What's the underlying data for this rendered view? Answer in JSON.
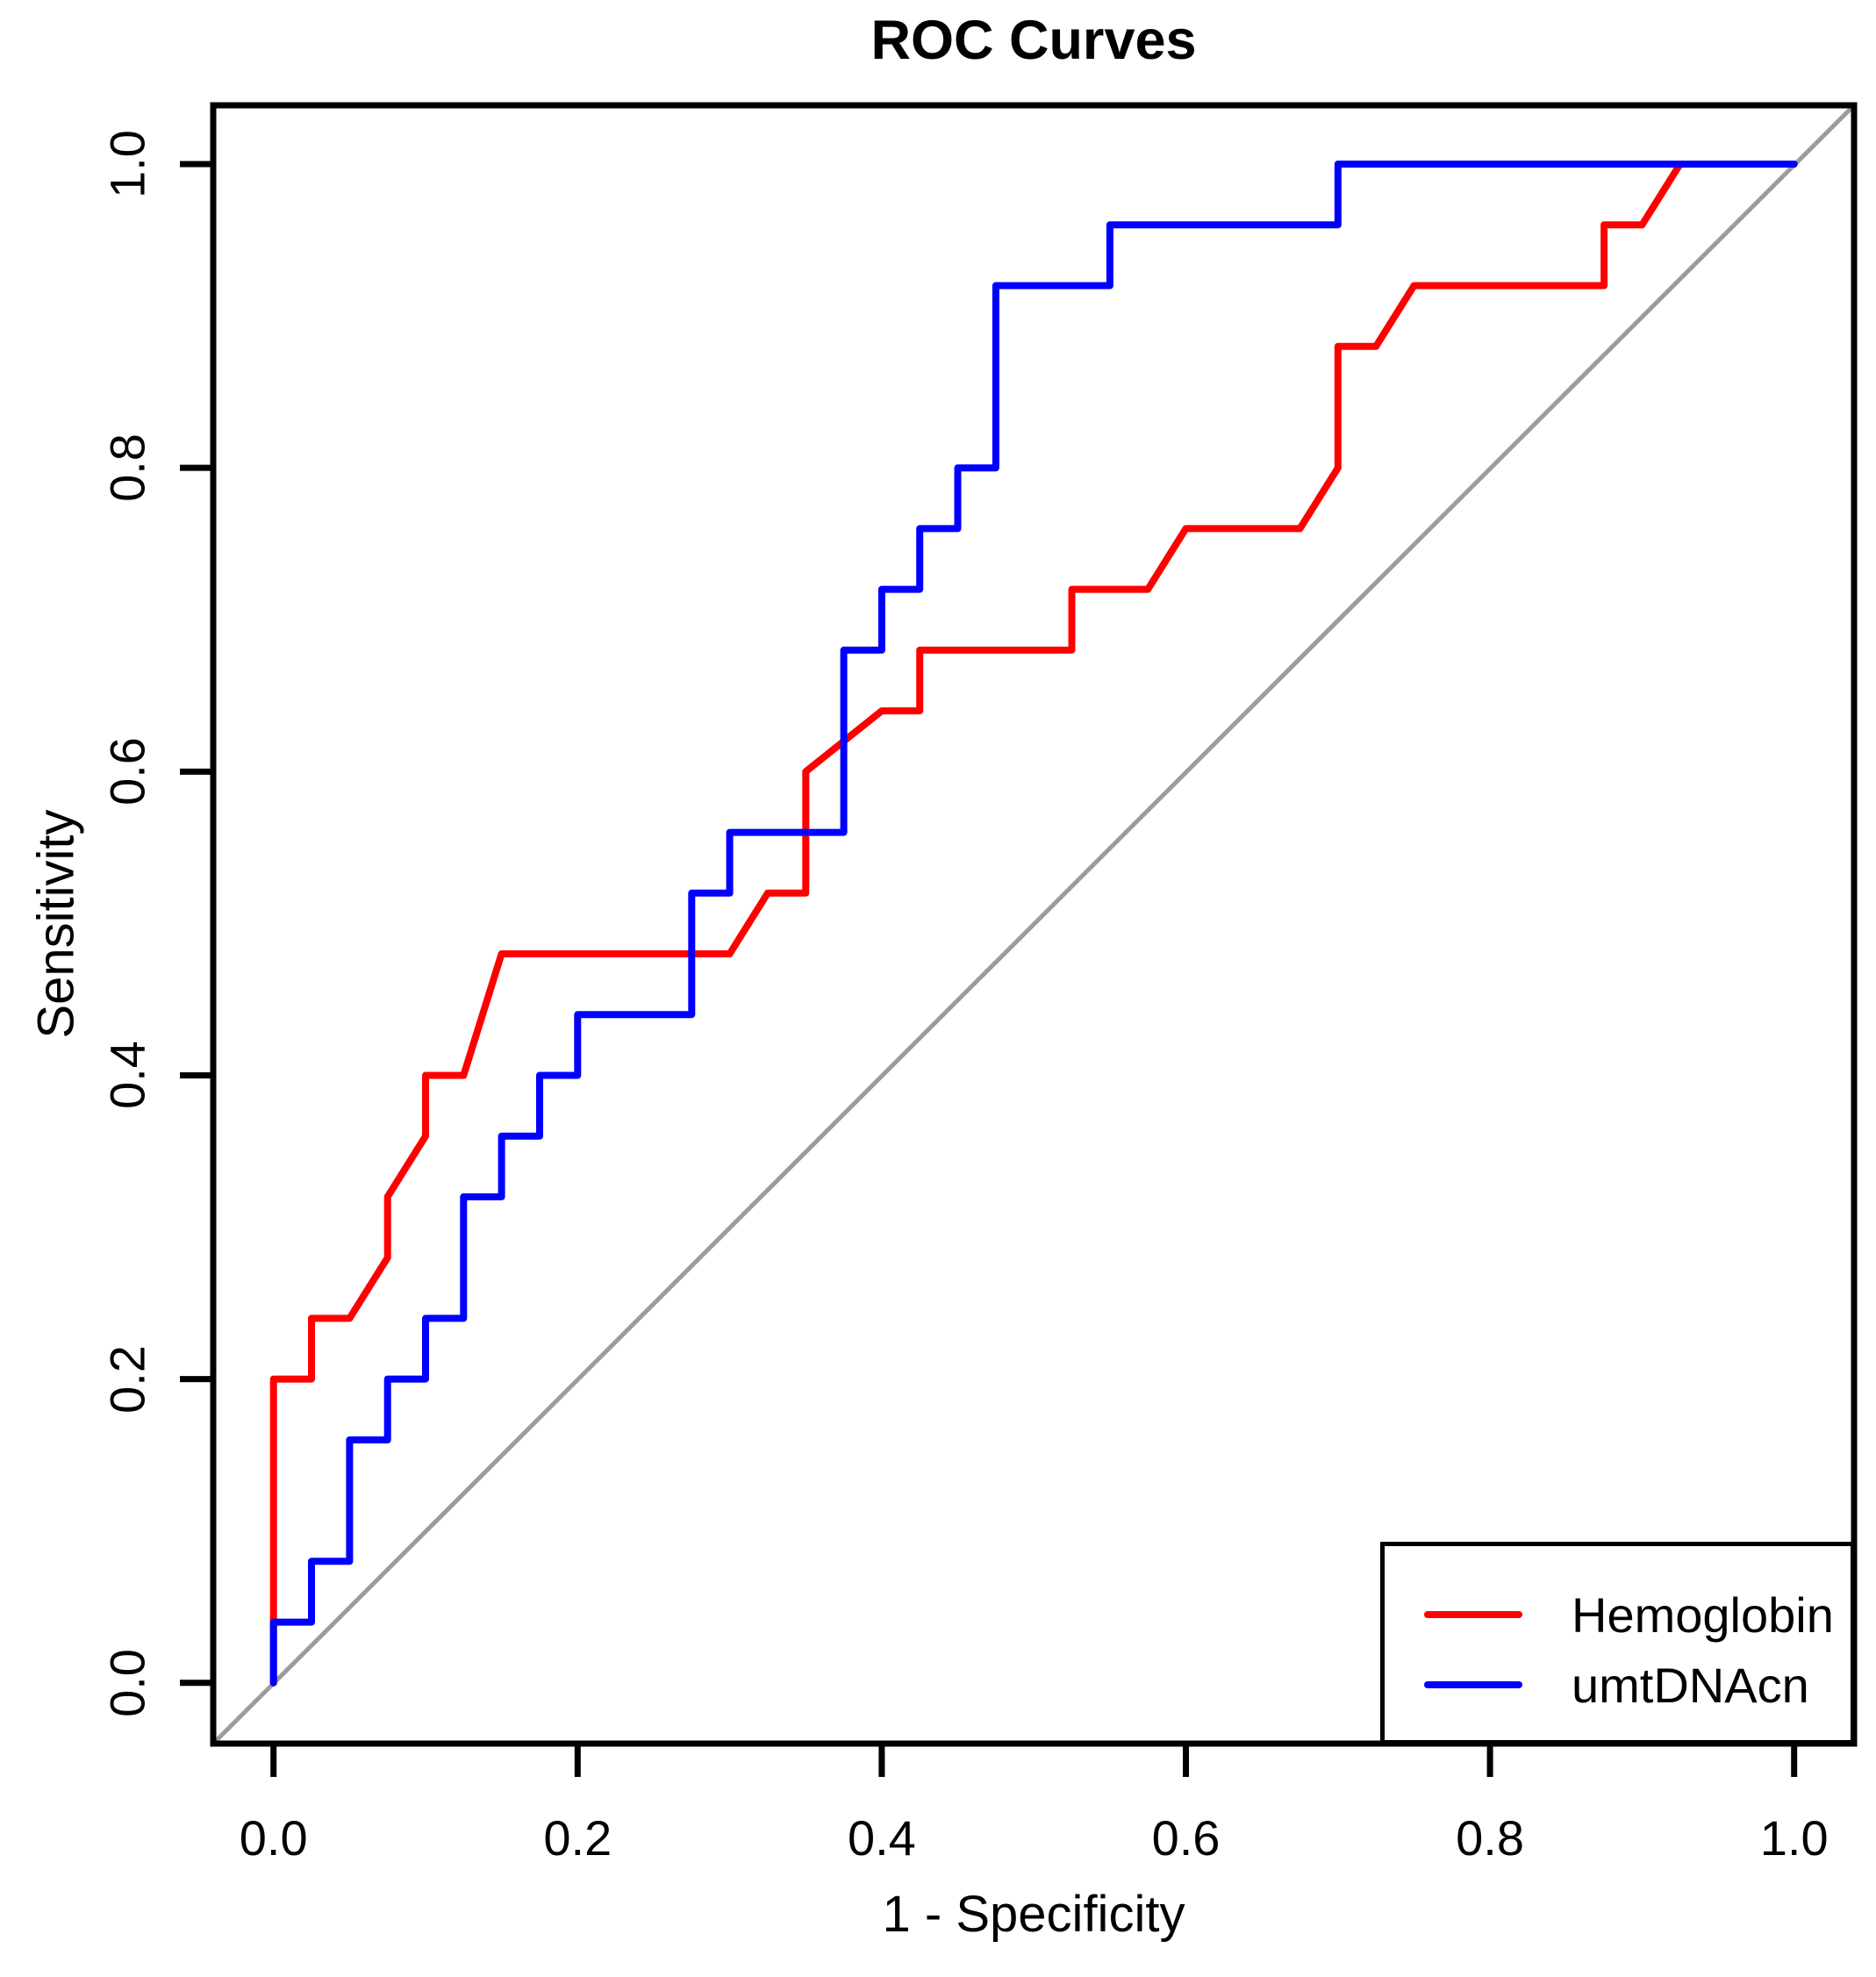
{
  "chart_data": {
    "type": "line",
    "subtype": "roc-step-curves",
    "title": "ROC Curves",
    "xlabel": "1 - Specificity",
    "ylabel": "Sensitivity",
    "xlim": [
      0,
      1
    ],
    "ylim": [
      0,
      1
    ],
    "grid": false,
    "x_ticks": [
      0,
      0.2,
      0.4,
      0.6,
      0.8,
      1.0
    ],
    "y_ticks": [
      0,
      0.2,
      0.4,
      0.6,
      0.8,
      1.0
    ],
    "x_tick_labels": [
      "0.0",
      "0.2",
      "0.4",
      "0.6",
      "0.8",
      "1.0"
    ],
    "y_tick_labels": [
      "0.0",
      "0.2",
      "0.4",
      "0.6",
      "0.8",
      "1.0"
    ],
    "reference_line": {
      "name": "chance-diagonal",
      "from": [
        0,
        0
      ],
      "to": [
        1,
        1
      ],
      "color": "#9C9C9C"
    },
    "legend": {
      "position": "bottomright",
      "items": [
        {
          "label": "Hemoglobin",
          "color": "#FF0000"
        },
        {
          "label": "umtDNAcn",
          "color": "#0000FF"
        }
      ]
    },
    "series": [
      {
        "name": "Hemoglobin",
        "color": "#FF0000",
        "points": [
          [
            0,
            0
          ],
          [
            0,
            0.2
          ],
          [
            0.025,
            0.2
          ],
          [
            0.025,
            0.24
          ],
          [
            0.05,
            0.24
          ],
          [
            0.075,
            0.28
          ],
          [
            0.075,
            0.32
          ],
          [
            0.1,
            0.36
          ],
          [
            0.1,
            0.4
          ],
          [
            0.125,
            0.4
          ],
          [
            0.15,
            0.48
          ],
          [
            0.3,
            0.48
          ],
          [
            0.325,
            0.52
          ],
          [
            0.35,
            0.52
          ],
          [
            0.35,
            0.6
          ],
          [
            0.4,
            0.64
          ],
          [
            0.425,
            0.64
          ],
          [
            0.425,
            0.68
          ],
          [
            0.525,
            0.68
          ],
          [
            0.525,
            0.72
          ],
          [
            0.575,
            0.72
          ],
          [
            0.6,
            0.76
          ],
          [
            0.675,
            0.76
          ],
          [
            0.7,
            0.8
          ],
          [
            0.7,
            0.88
          ],
          [
            0.725,
            0.88
          ],
          [
            0.75,
            0.92
          ],
          [
            0.875,
            0.92
          ],
          [
            0.875,
            0.96
          ],
          [
            0.9,
            0.96
          ],
          [
            0.925,
            1.0
          ],
          [
            1.0,
            1.0
          ]
        ]
      },
      {
        "name": "umtDNAcn",
        "color": "#0000FF",
        "points": [
          [
            0,
            0
          ],
          [
            0,
            0.04
          ],
          [
            0.025,
            0.04
          ],
          [
            0.025,
            0.08
          ],
          [
            0.05,
            0.08
          ],
          [
            0.05,
            0.16
          ],
          [
            0.075,
            0.16
          ],
          [
            0.075,
            0.2
          ],
          [
            0.1,
            0.2
          ],
          [
            0.1,
            0.24
          ],
          [
            0.125,
            0.24
          ],
          [
            0.125,
            0.32
          ],
          [
            0.15,
            0.32
          ],
          [
            0.15,
            0.36
          ],
          [
            0.175,
            0.36
          ],
          [
            0.175,
            0.4
          ],
          [
            0.2,
            0.4
          ],
          [
            0.2,
            0.44
          ],
          [
            0.275,
            0.44
          ],
          [
            0.275,
            0.52
          ],
          [
            0.3,
            0.52
          ],
          [
            0.3,
            0.56
          ],
          [
            0.375,
            0.56
          ],
          [
            0.375,
            0.68
          ],
          [
            0.4,
            0.68
          ],
          [
            0.4,
            0.72
          ],
          [
            0.425,
            0.72
          ],
          [
            0.425,
            0.76
          ],
          [
            0.45,
            0.76
          ],
          [
            0.45,
            0.8
          ],
          [
            0.475,
            0.8
          ],
          [
            0.475,
            0.92
          ],
          [
            0.55,
            0.92
          ],
          [
            0.55,
            0.96
          ],
          [
            0.7,
            0.96
          ],
          [
            0.7,
            1.0
          ],
          [
            1.0,
            1.0
          ]
        ]
      }
    ]
  },
  "colors": {
    "background": "#FFFFFF",
    "axis": "#000000",
    "red": "#FF0000",
    "blue": "#0000FF",
    "gray": "#9C9C9C"
  }
}
